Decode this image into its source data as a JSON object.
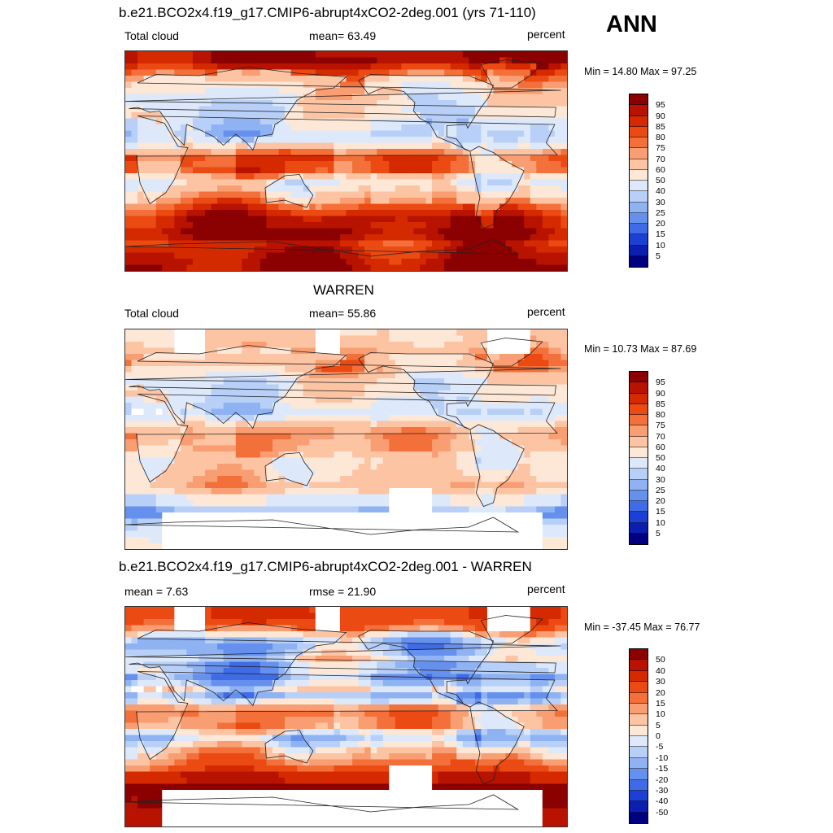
{
  "season": "ANN",
  "panels": [
    {
      "title": "b.e21.BCO2x4.f19_g17.CMIP6-abrupt4xCO2-2deg.001 (yrs 71-110)",
      "left_label": "Total cloud",
      "center_label": "mean=  63.49",
      "right_label": "percent",
      "minmax": "Min =  14.80 Max =  97.25",
      "colorbar": {
        "levels": [
          "95",
          "90",
          "85",
          "80",
          "75",
          "70",
          "60",
          "50",
          "40",
          "30",
          "25",
          "20",
          "15",
          "10",
          "5"
        ],
        "colors": [
          "#8b0000",
          "#b81300",
          "#d52a00",
          "#eb4a12",
          "#f3703a",
          "#f99e72",
          "#fcc4a3",
          "#fde7d6",
          "#dde9fb",
          "#b8d0f7",
          "#8fb2f3",
          "#6690ee",
          "#3f6be6",
          "#1c3fd6",
          "#0b1eb0",
          "#000080"
        ]
      },
      "fields": {
        "lat_profile": [
          96,
          90,
          82,
          76,
          70,
          66,
          62,
          58,
          55,
          52,
          49,
          46,
          48,
          58,
          72,
          80,
          78,
          66,
          58,
          62,
          70,
          76,
          82,
          88,
          93,
          96,
          94,
          88,
          90,
          92,
          94,
          95
        ],
        "continent_offset": -14,
        "warm_pool_offset": 10,
        "subtropical_low_offset": -18,
        "missing_mask": false
      }
    },
    {
      "title": "WARREN",
      "left_label": "Total cloud",
      "center_label": "mean=  55.86",
      "right_label": "percent",
      "minmax": "Min =  10.73 Max =  87.69",
      "colorbar": {
        "levels": [
          "95",
          "90",
          "85",
          "80",
          "75",
          "70",
          "60",
          "50",
          "40",
          "30",
          "25",
          "20",
          "15",
          "10",
          "5"
        ],
        "colors": [
          "#8b0000",
          "#b81300",
          "#d52a00",
          "#eb4a12",
          "#f3703a",
          "#f99e72",
          "#fcc4a3",
          "#fde7d6",
          "#dde9fb",
          "#b8d0f7",
          "#8fb2f3",
          "#6690ee",
          "#3f6be6",
          "#1c3fd6",
          "#0b1eb0",
          "#000080"
        ]
      },
      "fields": {
        "lat_profile": [
          62,
          66,
          70,
          74,
          76,
          72,
          64,
          58,
          56,
          54,
          50,
          46,
          52,
          62,
          68,
          70,
          68,
          64,
          60,
          62,
          64,
          66,
          68,
          62,
          48,
          32,
          28,
          36,
          44,
          50,
          50,
          50
        ],
        "continent_offset": -12,
        "warm_pool_offset": 8,
        "subtropical_low_offset": -10,
        "missing_mask": true
      }
    },
    {
      "title": "b.e21.BCO2x4.f19_g17.CMIP6-abrupt4xCO2-2deg.001 - WARREN",
      "left_label": "mean =   7.63",
      "center_label": "rmse =  21.90",
      "right_label": "percent",
      "minmax": "Min = -37.45 Max =  76.77",
      "colorbar": {
        "levels": [
          "50",
          "40",
          "30",
          "20",
          "15",
          "10",
          "5",
          "0",
          "-5",
          "-10",
          "-15",
          "-20",
          "-30",
          "-40",
          "-50"
        ],
        "colors": [
          "#8b0000",
          "#b81300",
          "#d52a00",
          "#eb4a12",
          "#f3703a",
          "#f99e72",
          "#fcc4a3",
          "#fde7d6",
          "#dde9fb",
          "#b8d0f7",
          "#8fb2f3",
          "#6690ee",
          "#3f6be6",
          "#1c3fd6",
          "#0b1eb0",
          "#000080"
        ]
      },
      "fields": {
        "lat_profile": [
          30,
          26,
          18,
          8,
          -2,
          -6,
          -4,
          2,
          -6,
          -10,
          -4,
          4,
          -8,
          -2,
          10,
          14,
          12,
          2,
          -4,
          2,
          10,
          14,
          18,
          24,
          40,
          60,
          62,
          56,
          54,
          50,
          44,
          40
        ],
        "continent_offset": -6,
        "warm_pool_offset": 6,
        "subtropical_low_offset": -14,
        "missing_mask": true
      }
    }
  ]
}
